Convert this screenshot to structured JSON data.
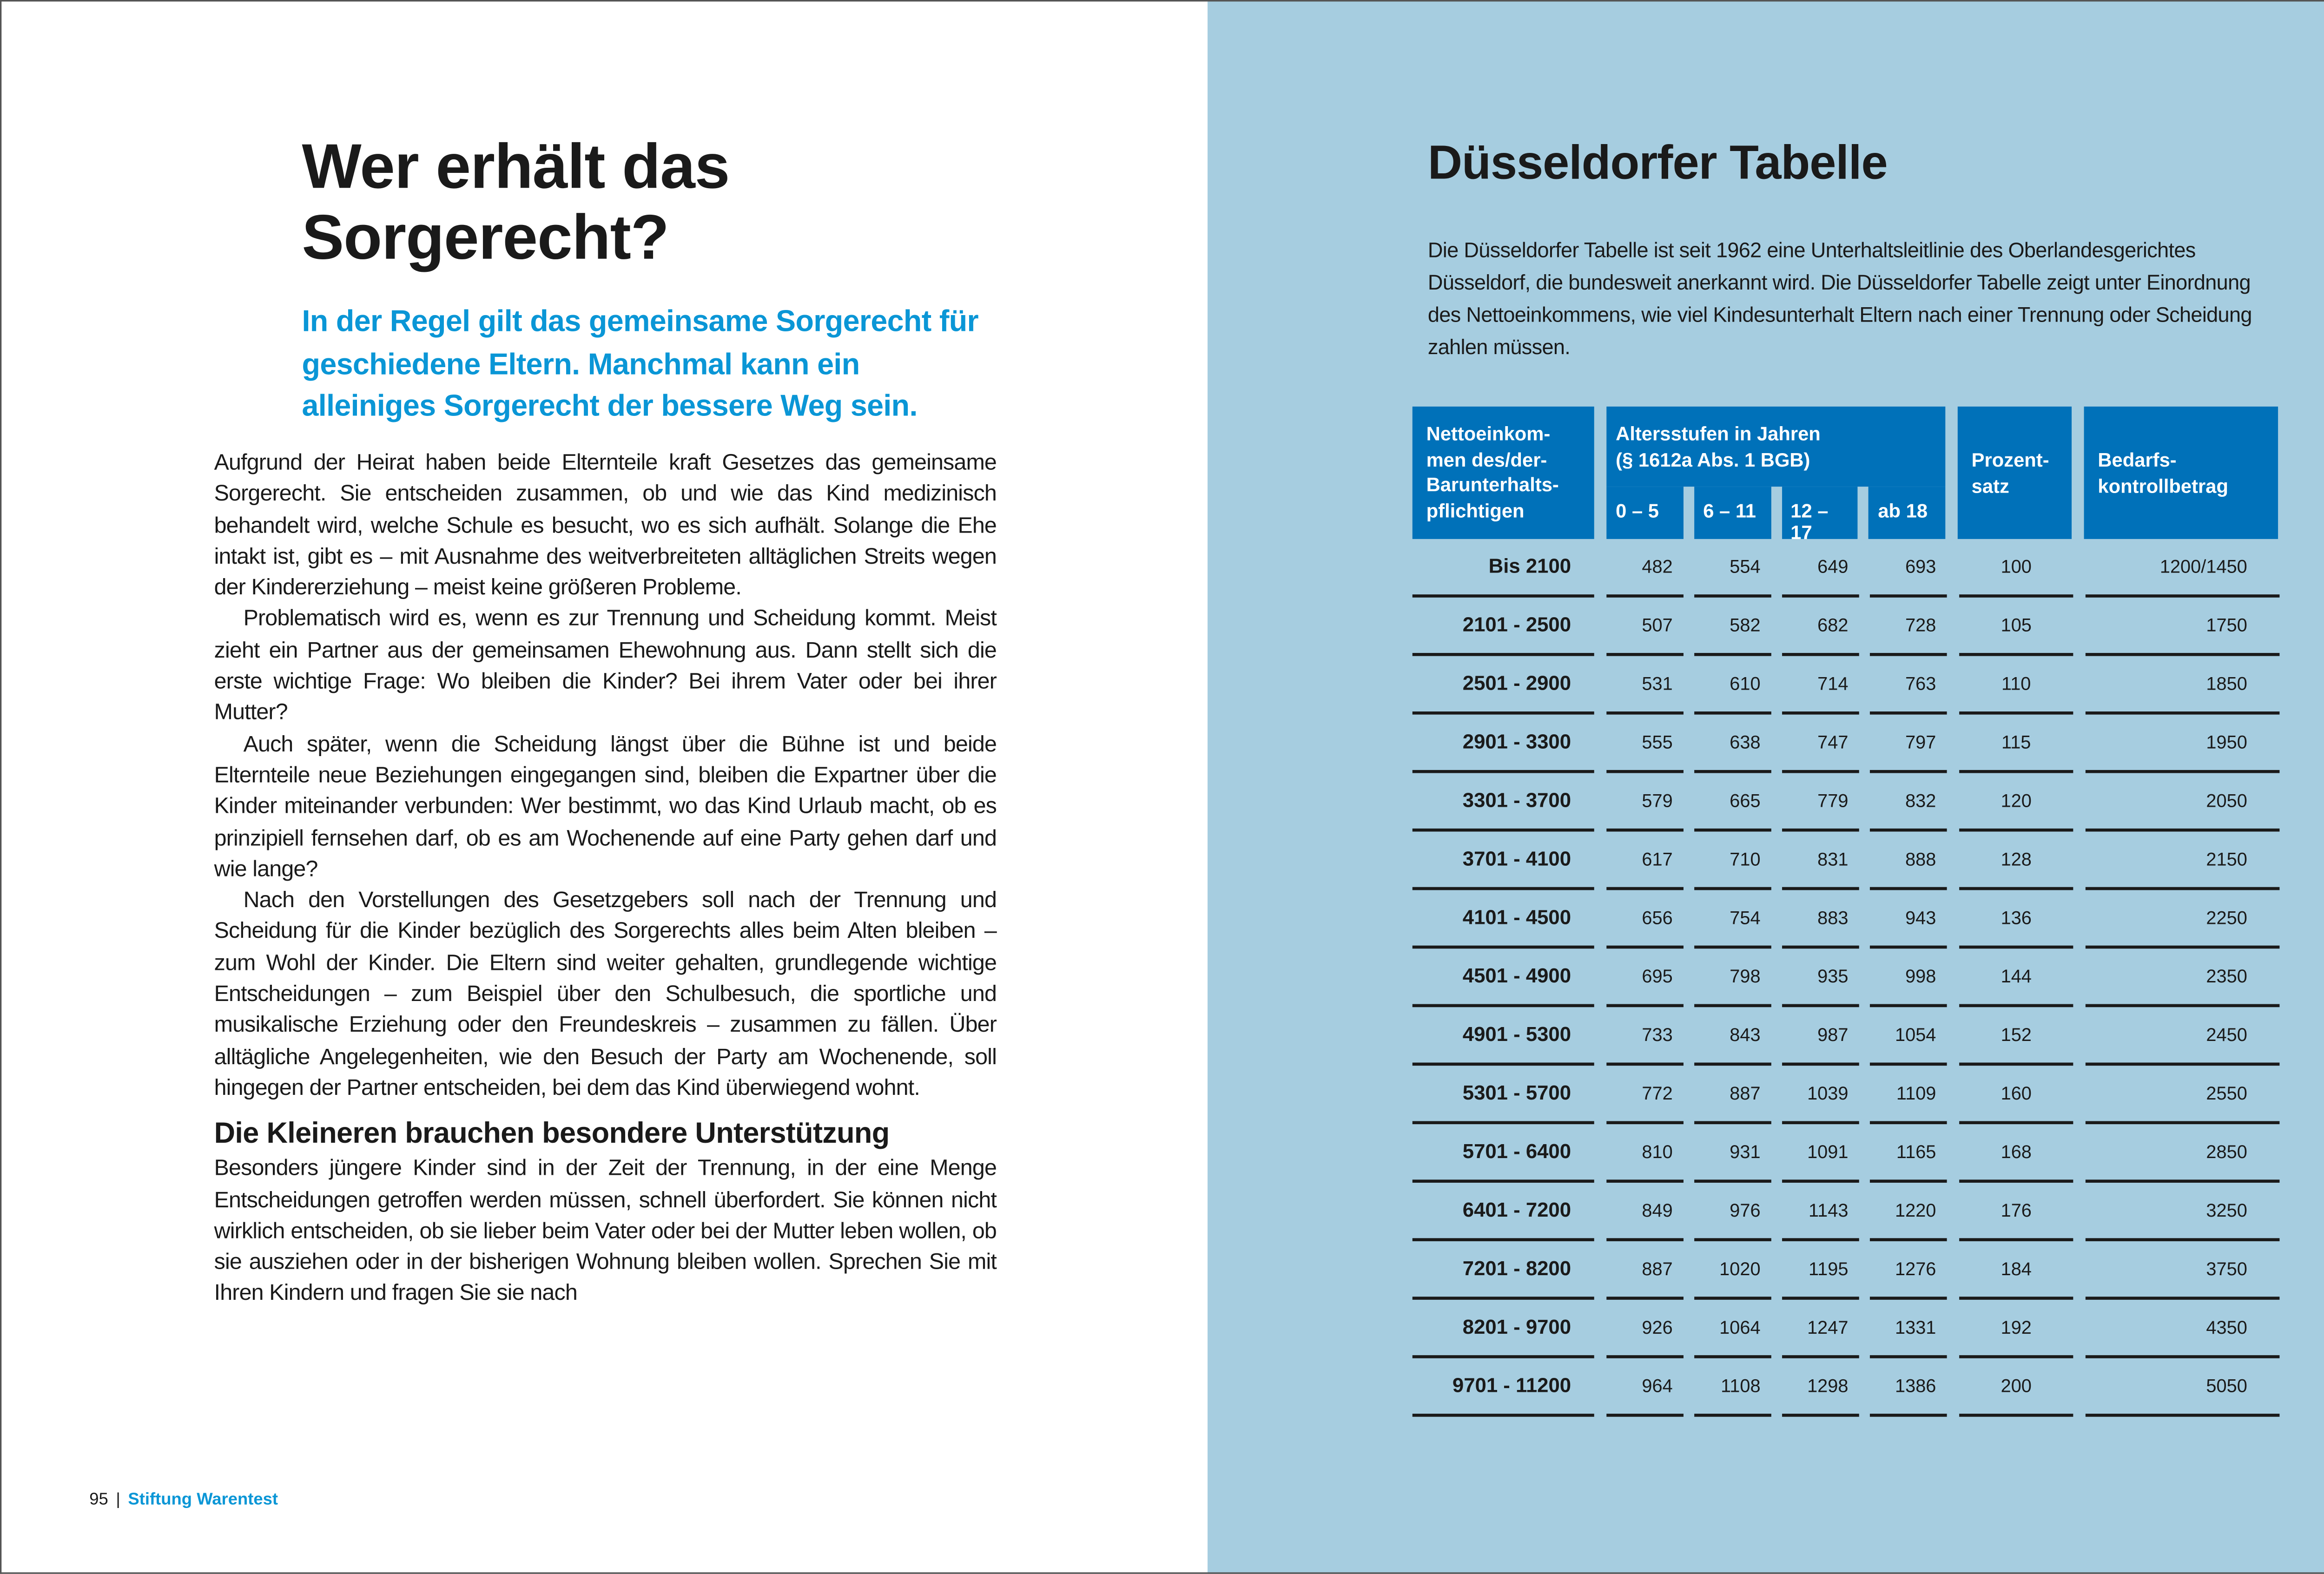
{
  "left_page": {
    "title_line1": "Wer erhält das",
    "title_line2": "Sorgerecht?",
    "lead": "In der Regel gilt das gemeinsame Sorgerecht für geschiedene Eltern. Manchmal kann ein alleiniges Sorgerecht der bessere Weg sein.",
    "paragraphs": [
      "Aufgrund der Heirat haben beide Elternteile kraft Gesetzes das gemeinsame Sorgerecht. Sie entscheiden zusammen, ob und wie das Kind medizinisch behandelt wird, welche Schule es besucht, wo es sich aufhält. Solange die Ehe intakt ist, gibt es – mit Ausnahme des weitverbreiteten alltäglichen Streits wegen der Kindererziehung – meist keine größeren Probleme.",
      "Problematisch wird es, wenn es zur Trennung und Scheidung kommt. Meist zieht ein Partner aus der gemeinsamen Ehewohnung aus. Dann stellt sich die erste wichtige Frage: Wo bleiben die Kinder? Bei ihrem Vater oder bei ihrer Mutter?",
      "Auch später, wenn die Scheidung längst über die Bühne ist und beide Elternteile neue Beziehungen eingegangen sind, bleiben die Expartner über die Kinder miteinander verbunden: Wer bestimmt, wo das Kind Urlaub macht, ob es prinzipiell fernsehen darf, ob es am Wochenende auf eine Party gehen darf und wie lange?",
      "Nach den Vorstellungen des Gesetzgebers soll nach der Trennung und Scheidung für die Kinder bezüglich des Sorgerechts alles beim Alten bleiben – zum Wohl der Kinder. Die Eltern sind weiter gehalten, grundlegende wichtige Entscheidungen – zum Beispiel über den Schulbesuch, die sportliche und musikalische Erziehung oder den Freundeskreis – zusammen zu fällen. Über alltägliche Angelegenheiten, wie den Besuch der Party am Wochenende, soll hingegen der Partner entscheiden, bei dem das Kind überwiegend wohnt."
    ],
    "subheading": "Die Kleineren brauchen besondere Unterstützung",
    "sub_paragraph": "Besonders jüngere Kinder sind in der Zeit der Trennung, in der eine Menge Entscheidungen getroffen werden müssen, schnell überfordert. Sie können nicht wirklich entscheiden, ob sie lieber beim Vater oder bei der Mutter leben wollen, ob sie ausziehen oder in der bisherigen Wohnung bleiben wollen. Sprechen Sie mit Ihren Kindern und fragen Sie sie nach",
    "footer": {
      "page_number": "95",
      "separator": "|",
      "brand": "Stiftung Warentest"
    }
  },
  "right_page": {
    "title": "Düsseldorfer Tabelle",
    "intro": "Die Düsseldorfer Tabelle ist seit 1962 eine Unterhaltsleitlinie des Oberlandesgerichtes Düsseldorf, die bundesweit anerkannt wird. Die Düsseldorfer Tabelle zeigt unter Einordnung des Nettoeinkommens, wie viel Kindesunterhalt Eltern nach einer Trennung oder Scheidung zahlen müssen.",
    "table": {
      "headers": {
        "income": "Nettoeinkommen des/der Barunterhaltspflichtigen",
        "age_group": "Altersstufen in Jahren (§ 1612a Abs. 1 BGB)",
        "ages": [
          "0 – 5",
          "6 – 11",
          "12 – 17",
          "ab 18"
        ],
        "percent": "Prozentsatz",
        "control": "Bedarfskontrollbetrag"
      },
      "rows": [
        [
          "Bis 2100",
          "482",
          "554",
          "649",
          "693",
          "100",
          "1200/1450"
        ],
        [
          "2101 - 2500",
          "507",
          "582",
          "682",
          "728",
          "105",
          "1750"
        ],
        [
          "2501 - 2900",
          "531",
          "610",
          "714",
          "763",
          "110",
          "1850"
        ],
        [
          "2901 - 3300",
          "555",
          "638",
          "747",
          "797",
          "115",
          "1950"
        ],
        [
          "3301 - 3700",
          "579",
          "665",
          "779",
          "832",
          "120",
          "2050"
        ],
        [
          "3701 - 4100",
          "617",
          "710",
          "831",
          "888",
          "128",
          "2150"
        ],
        [
          "4101 - 4500",
          "656",
          "754",
          "883",
          "943",
          "136",
          "2250"
        ],
        [
          "4501 - 4900",
          "695",
          "798",
          "935",
          "998",
          "144",
          "2350"
        ],
        [
          "4901 - 5300",
          "733",
          "843",
          "987",
          "1054",
          "152",
          "2450"
        ],
        [
          "5301 - 5700",
          "772",
          "887",
          "1039",
          "1109",
          "160",
          "2550"
        ],
        [
          "5701 - 6400",
          "810",
          "931",
          "1091",
          "1165",
          "168",
          "2850"
        ],
        [
          "6401 - 7200",
          "849",
          "976",
          "1143",
          "1220",
          "176",
          "3250"
        ],
        [
          "7201 - 8200",
          "887",
          "1020",
          "1195",
          "1276",
          "184",
          "3750"
        ],
        [
          "8201 - 9700",
          "926",
          "1064",
          "1247",
          "1331",
          "192",
          "4350"
        ],
        [
          "9701 - 11200",
          "964",
          "1108",
          "1298",
          "1386",
          "200",
          "5050"
        ]
      ]
    }
  },
  "colors": {
    "accent_blue": "#0a96d6",
    "header_blue": "#0071b9",
    "panel_blue": "#a6cde0"
  }
}
